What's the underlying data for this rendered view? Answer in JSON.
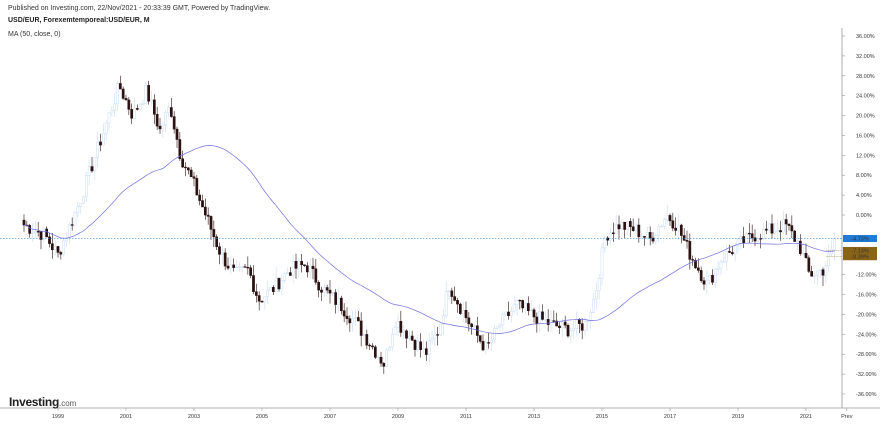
{
  "header": {
    "published": "Published on Investing.com, 22/Nov/2021 - 20:33:39 GMT, Powered by TradingView.",
    "symbol": "USD/EUR, Forexemtemporeal:USD/EUR, M",
    "indicator": "MA (50, close, 0)"
  },
  "logo": {
    "name": "Investing",
    "suffix": ".com"
  },
  "colors": {
    "up_candle": "#c9dcf5",
    "down_candle": "#2b1010",
    "ma_line": "#6f6fe6",
    "last_price_line": "#3a8ed8",
    "last_price_label": "#1f7bd8",
    "gold_label": "#8a6416"
  },
  "chart_data": {
    "type": "candlestick",
    "x_ticks": [
      "1999",
      "2001",
      "2003",
      "2005",
      "2007",
      "2009",
      "2011",
      "2013",
      "2015",
      "2017",
      "2019",
      "2021",
      "Prev"
    ],
    "y_ticks": [
      "36.00%",
      "32.00%",
      "28.00%",
      "24.00%",
      "20.00%",
      "16.00%",
      "12.00%",
      "8.00%",
      "4.00%",
      "0.00%",
      "-4.73%",
      "-7.13%",
      "-8.39%",
      "-12.00%",
      "-16.00%",
      "-20.00%",
      "-24.00%",
      "-28.00%",
      "-32.00%",
      "-36.00%"
    ],
    "ylim": [
      -38,
      38
    ],
    "last_value": -4.73,
    "price_labels": [
      {
        "text": "-4.73%",
        "value": -4.73,
        "color": "#1f7bd8"
      },
      {
        "text": "-7.13%",
        "value": -7.13,
        "color": "#8a6416"
      },
      {
        "text": "-8.39%",
        "value": -8.39,
        "color": "#8a6416"
      }
    ],
    "key_closes": [
      {
        "year": 1998.0,
        "value": -2
      },
      {
        "year": 1998.6,
        "value": -4
      },
      {
        "year": 1999.0,
        "value": -8
      },
      {
        "year": 1999.6,
        "value": 2
      },
      {
        "year": 2000.3,
        "value": 16
      },
      {
        "year": 2000.8,
        "value": 26
      },
      {
        "year": 2001.2,
        "value": 20
      },
      {
        "year": 2001.6,
        "value": 25
      },
      {
        "year": 2002.0,
        "value": 17
      },
      {
        "year": 2002.3,
        "value": 22
      },
      {
        "year": 2002.6,
        "value": 12
      },
      {
        "year": 2003.0,
        "value": 6
      },
      {
        "year": 2003.4,
        "value": -1
      },
      {
        "year": 2003.8,
        "value": -8
      },
      {
        "year": 2004.2,
        "value": -12
      },
      {
        "year": 2004.6,
        "value": -11
      },
      {
        "year": 2004.9,
        "value": -17
      },
      {
        "year": 2005.3,
        "value": -15
      },
      {
        "year": 2005.8,
        "value": -11
      },
      {
        "year": 2006.3,
        "value": -10
      },
      {
        "year": 2006.8,
        "value": -15
      },
      {
        "year": 2007.3,
        "value": -18
      },
      {
        "year": 2007.8,
        "value": -22
      },
      {
        "year": 2008.3,
        "value": -27
      },
      {
        "year": 2008.6,
        "value": -30
      },
      {
        "year": 2008.9,
        "value": -21
      },
      {
        "year": 2009.3,
        "value": -24
      },
      {
        "year": 2009.8,
        "value": -28
      },
      {
        "year": 2010.2,
        "value": -23
      },
      {
        "year": 2010.5,
        "value": -14
      },
      {
        "year": 2010.8,
        "value": -18
      },
      {
        "year": 2011.2,
        "value": -23
      },
      {
        "year": 2011.6,
        "value": -27
      },
      {
        "year": 2012.0,
        "value": -22
      },
      {
        "year": 2012.5,
        "value": -18
      },
      {
        "year": 2012.9,
        "value": -20
      },
      {
        "year": 2013.5,
        "value": -22
      },
      {
        "year": 2014.0,
        "value": -23
      },
      {
        "year": 2014.5,
        "value": -22
      },
      {
        "year": 2014.8,
        "value": -16
      },
      {
        "year": 2015.1,
        "value": -4
      },
      {
        "year": 2015.5,
        "value": -2
      },
      {
        "year": 2016.0,
        "value": -3
      },
      {
        "year": 2016.4,
        "value": -5
      },
      {
        "year": 2016.9,
        "value": 0
      },
      {
        "year": 2017.2,
        "value": -2
      },
      {
        "year": 2017.6,
        "value": -8
      },
      {
        "year": 2018.1,
        "value": -14
      },
      {
        "year": 2018.5,
        "value": -9
      },
      {
        "year": 2019.0,
        "value": -6
      },
      {
        "year": 2019.5,
        "value": -4
      },
      {
        "year": 2020.0,
        "value": -3
      },
      {
        "year": 2020.4,
        "value": -2
      },
      {
        "year": 2020.8,
        "value": -6
      },
      {
        "year": 2021.1,
        "value": -12
      },
      {
        "year": 2021.5,
        "value": -11
      },
      {
        "year": 2021.8,
        "value": -7
      },
      {
        "year": 2021.9,
        "value": -4.73
      }
    ]
  }
}
